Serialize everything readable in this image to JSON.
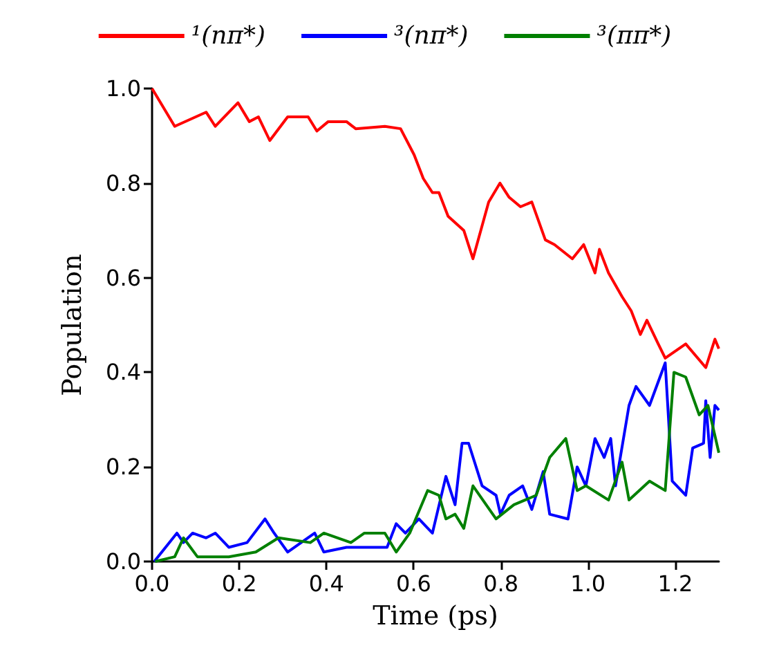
{
  "chart_data": {
    "type": "line",
    "xlabel": "Time (ps)",
    "ylabel": "Population",
    "xlim": [
      0,
      1.3
    ],
    "ylim": [
      0,
      1.0
    ],
    "xticks": [
      {
        "value": 0,
        "label": "0.0"
      },
      {
        "value": 0.2,
        "label": "0.2"
      },
      {
        "value": 0.4,
        "label": "0.4"
      },
      {
        "value": 0.6,
        "label": "0.6"
      },
      {
        "value": 0.8,
        "label": "0.8"
      },
      {
        "value": 1.0,
        "label": "1.0"
      },
      {
        "value": 1.2,
        "label": "1.2"
      }
    ],
    "yticks": [
      {
        "value": 0,
        "label": "0.0"
      },
      {
        "value": 0.2,
        "label": "0.2"
      },
      {
        "value": 0.4,
        "label": "0.4"
      },
      {
        "value": 0.6,
        "label": "0.6"
      },
      {
        "value": 0.8,
        "label": "0.8"
      },
      {
        "value": 1.0,
        "label": "1.0"
      }
    ],
    "grid": false,
    "legend": "top",
    "marker": "none",
    "line_style": "solid",
    "series": [
      {
        "name": "¹(nπ*)",
        "color": "#ff0000",
        "x": [
          0,
          0.052,
          0.124,
          0.145,
          0.197,
          0.223,
          0.244,
          0.27,
          0.311,
          0.358,
          0.378,
          0.404,
          0.446,
          0.467,
          0.534,
          0.57,
          0.601,
          0.622,
          0.643,
          0.658,
          0.679,
          0.715,
          0.736,
          0.772,
          0.798,
          0.819,
          0.845,
          0.871,
          0.902,
          0.923,
          0.964,
          0.99,
          1.016,
          1.026,
          1.047,
          1.078,
          1.099,
          1.12,
          1.135,
          1.161,
          1.177,
          1.224,
          1.27,
          1.291,
          1.3
        ],
        "values": [
          1.0,
          0.92,
          0.95,
          0.92,
          0.97,
          0.93,
          0.94,
          0.89,
          0.94,
          0.94,
          0.91,
          0.93,
          0.93,
          0.915,
          0.92,
          0.915,
          0.86,
          0.81,
          0.78,
          0.78,
          0.73,
          0.7,
          0.64,
          0.76,
          0.8,
          0.77,
          0.75,
          0.76,
          0.68,
          0.67,
          0.64,
          0.67,
          0.61,
          0.66,
          0.61,
          0.56,
          0.53,
          0.48,
          0.51,
          0.46,
          0.43,
          0.46,
          0.41,
          0.47,
          0.45
        ]
      },
      {
        "name": "³(nπ*)",
        "color": "#0000ff",
        "x": [
          0.005,
          0.031,
          0.057,
          0.072,
          0.093,
          0.124,
          0.145,
          0.176,
          0.218,
          0.259,
          0.28,
          0.311,
          0.373,
          0.394,
          0.446,
          0.539,
          0.56,
          0.581,
          0.612,
          0.643,
          0.674,
          0.695,
          0.711,
          0.726,
          0.757,
          0.789,
          0.799,
          0.819,
          0.85,
          0.871,
          0.897,
          0.912,
          0.954,
          0.975,
          0.995,
          1.016,
          1.037,
          1.052,
          1.063,
          1.094,
          1.11,
          1.141,
          1.177,
          1.193,
          1.224,
          1.24,
          1.265,
          1.27,
          1.28,
          1.291,
          1.3
        ],
        "values": [
          0.0,
          0.03,
          0.06,
          0.04,
          0.06,
          0.05,
          0.06,
          0.03,
          0.04,
          0.09,
          0.06,
          0.02,
          0.06,
          0.02,
          0.03,
          0.03,
          0.08,
          0.06,
          0.09,
          0.06,
          0.18,
          0.12,
          0.25,
          0.25,
          0.16,
          0.14,
          0.1,
          0.14,
          0.16,
          0.11,
          0.19,
          0.1,
          0.09,
          0.2,
          0.16,
          0.26,
          0.22,
          0.26,
          0.16,
          0.33,
          0.37,
          0.33,
          0.42,
          0.17,
          0.14,
          0.24,
          0.25,
          0.34,
          0.22,
          0.33,
          0.32
        ]
      },
      {
        "name": "³(ππ*)",
        "color": "#008000",
        "x": [
          0.007,
          0.052,
          0.072,
          0.104,
          0.176,
          0.238,
          0.29,
          0.363,
          0.394,
          0.456,
          0.487,
          0.534,
          0.56,
          0.591,
          0.632,
          0.658,
          0.674,
          0.695,
          0.715,
          0.736,
          0.789,
          0.83,
          0.881,
          0.912,
          0.949,
          0.975,
          0.995,
          1.047,
          1.078,
          1.094,
          1.141,
          1.177,
          1.197,
          1.224,
          1.255,
          1.275,
          1.3
        ],
        "values": [
          0.0,
          0.01,
          0.05,
          0.01,
          0.01,
          0.02,
          0.05,
          0.04,
          0.06,
          0.04,
          0.06,
          0.06,
          0.02,
          0.06,
          0.15,
          0.14,
          0.09,
          0.1,
          0.07,
          0.16,
          0.09,
          0.12,
          0.14,
          0.22,
          0.26,
          0.15,
          0.16,
          0.13,
          0.21,
          0.13,
          0.17,
          0.15,
          0.4,
          0.39,
          0.31,
          0.33,
          0.23
        ]
      }
    ]
  }
}
